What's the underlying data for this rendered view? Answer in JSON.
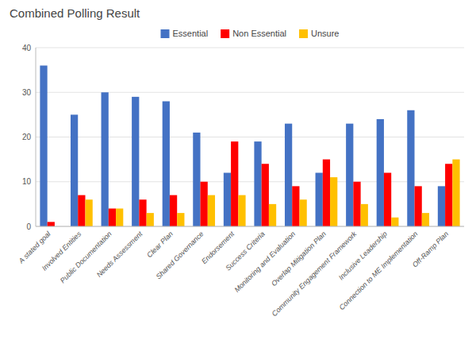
{
  "chart_data": {
    "type": "bar",
    "title": "Combined Polling Result",
    "categories": [
      "A stated goal",
      "Involved Entities",
      "Public Documentation",
      "Needs Assessment",
      "Clear Plan",
      "Shared Governance",
      "Endorsement",
      "Success Criteria",
      "Monitoring and Evaluation",
      "Overlap Mitigation Plan",
      "Community Engagement Framework",
      "Inclusive Leadership",
      "Connection to ME Implementation",
      "Off-Ramp Plan"
    ],
    "series": [
      {
        "name": "Essential",
        "color": "#4472C4",
        "values": [
          36,
          25,
          30,
          29,
          28,
          21,
          12,
          19,
          23,
          12,
          23,
          24,
          26,
          9
        ]
      },
      {
        "name": "Non Essential",
        "color": "#FF0000",
        "values": [
          1,
          7,
          4,
          6,
          7,
          10,
          19,
          14,
          9,
          15,
          10,
          12,
          9,
          14
        ]
      },
      {
        "name": "Unsure",
        "color": "#FFC000",
        "values": [
          0,
          6,
          4,
          3,
          3,
          7,
          7,
          5,
          6,
          11,
          5,
          2,
          3,
          15
        ]
      }
    ],
    "ylim": [
      0,
      40
    ],
    "yticks": [
      0,
      10,
      20,
      30,
      40
    ],
    "grid": true,
    "legend": "top"
  }
}
